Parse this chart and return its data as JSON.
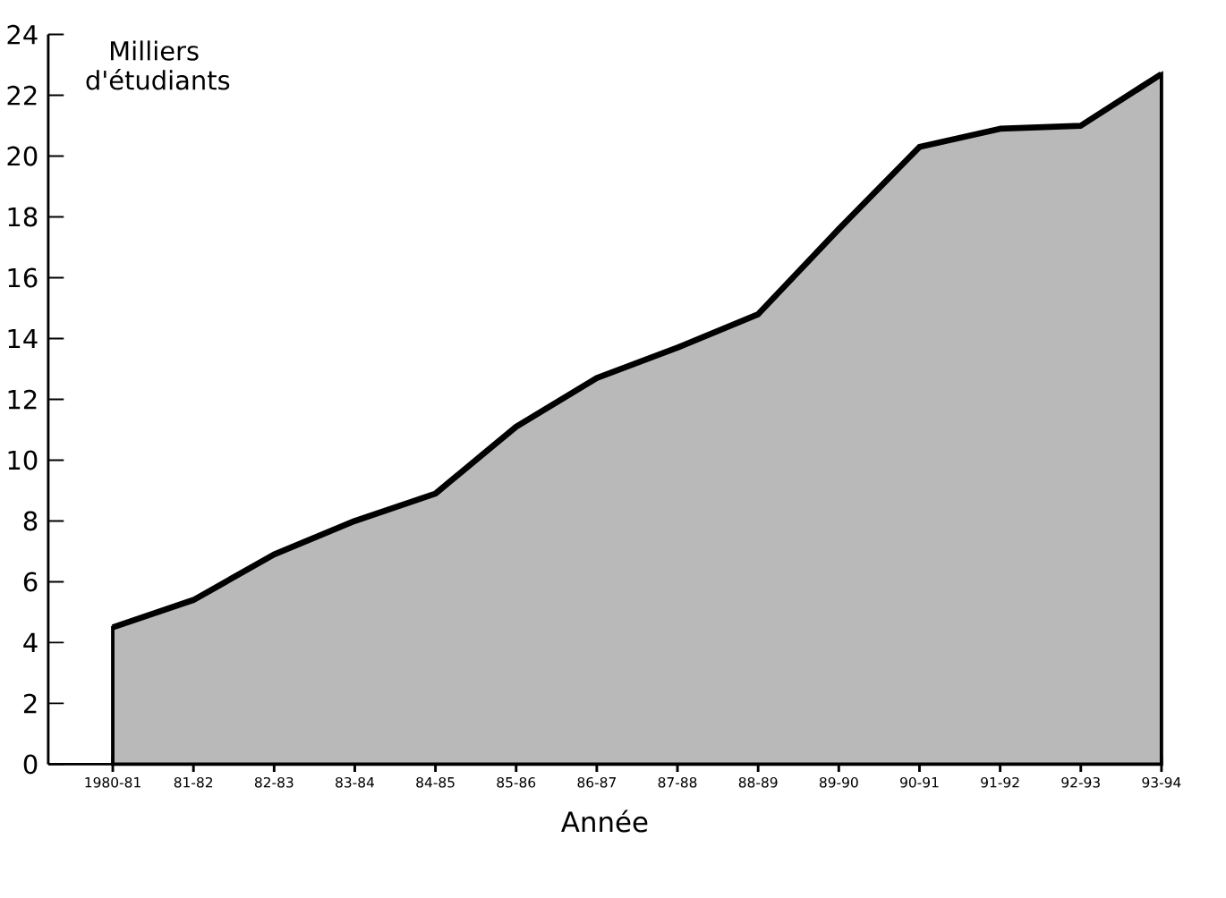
{
  "chart_data": {
    "type": "area",
    "ylabel": "Milliers d'étudiants",
    "xlabel": "Année",
    "categories": [
      "1980-81",
      "81-82",
      "82-83",
      "83-84",
      "84-85",
      "85-86",
      "86-87",
      "87-88",
      "88-89",
      "89-90",
      "90-91",
      "91-92",
      "92-93",
      "93-94"
    ],
    "series": [
      {
        "color": "#000000",
        "values": [
          4.5,
          5.4,
          6.9,
          8.0,
          8.9,
          11.1,
          12.7,
          13.7,
          14.8,
          17.6,
          20.3,
          20.9,
          21.0,
          22.7
        ]
      }
    ],
    "ylim": [
      0,
      24
    ],
    "yticks": [
      0,
      2,
      4,
      6,
      8,
      10,
      12,
      14,
      16,
      18,
      20,
      22,
      24
    ]
  }
}
